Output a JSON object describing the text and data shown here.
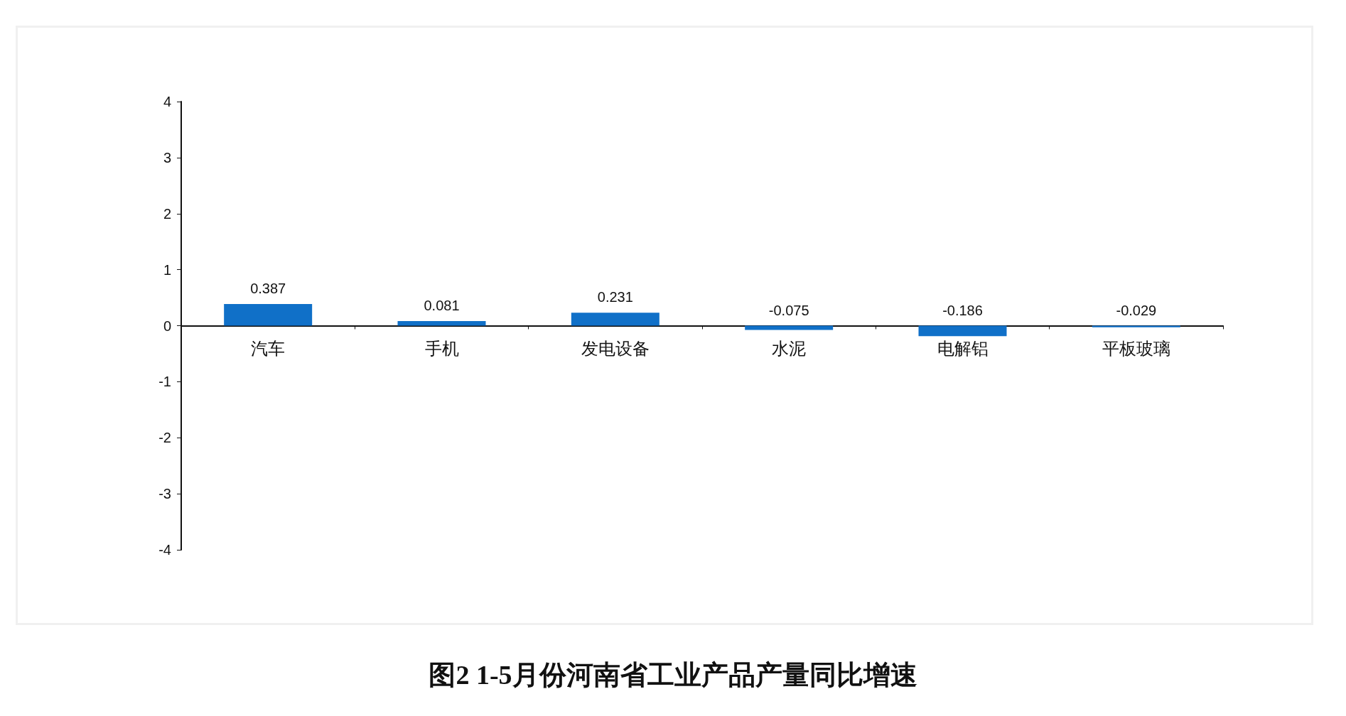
{
  "chart_data": {
    "type": "bar",
    "title": "图2  1-5月份河南省工业产品产量同比增速",
    "categories": [
      "汽车",
      "手机",
      "发电设备",
      "水泥",
      "电解铝",
      "平板玻璃"
    ],
    "values": [
      0.387,
      0.081,
      0.231,
      -0.075,
      -0.186,
      -0.029
    ],
    "color": "#1070c8",
    "ylim": [
      -4,
      4
    ],
    "yticks": [
      -4,
      -3,
      -2,
      -1,
      0,
      1,
      2,
      3,
      4
    ],
    "data_labels": true
  }
}
